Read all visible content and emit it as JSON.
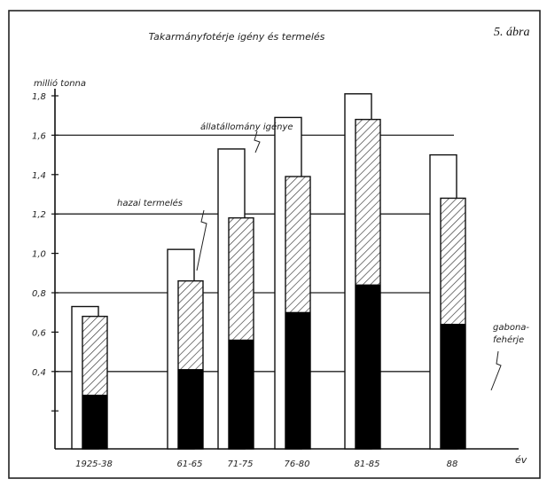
{
  "figure_label": "5. ábra",
  "chart_data": {
    "type": "bar",
    "title": "Takarmányfotérje igény és termelés",
    "ylabel": "millió tonna",
    "xlabel": "év",
    "ylim": [
      0.2,
      1.8
    ],
    "yticks": [
      "1,8",
      "1,6",
      "1,4",
      "1,2",
      "1,0",
      "0,8",
      "0,6",
      "0,4"
    ],
    "grid_levels": [
      0.4,
      0.8,
      1.2,
      1.6
    ],
    "categories": [
      "1925-38",
      "61-65",
      "71-75",
      "76-80",
      "81-85",
      "88"
    ],
    "series": [
      {
        "name": "állatállomány igénye",
        "values": [
          0.73,
          1.02,
          1.53,
          1.69,
          1.81,
          1.5
        ]
      },
      {
        "name": "hazai termelés",
        "values": [
          0.68,
          0.86,
          1.18,
          1.39,
          1.68,
          1.28
        ]
      },
      {
        "name": "gabona-fehérje",
        "values": [
          0.28,
          0.41,
          0.56,
          0.7,
          0.84,
          0.64
        ]
      }
    ]
  },
  "annotations": {
    "demand_label": "állatállomány igénye",
    "production_label": "hazai termelés",
    "grain_label_line1": "gabona-",
    "grain_label_line2": "fehérje"
  },
  "colors": {
    "ink": "#111111",
    "bar_fill": "#ffffff",
    "grain": "#000000"
  }
}
